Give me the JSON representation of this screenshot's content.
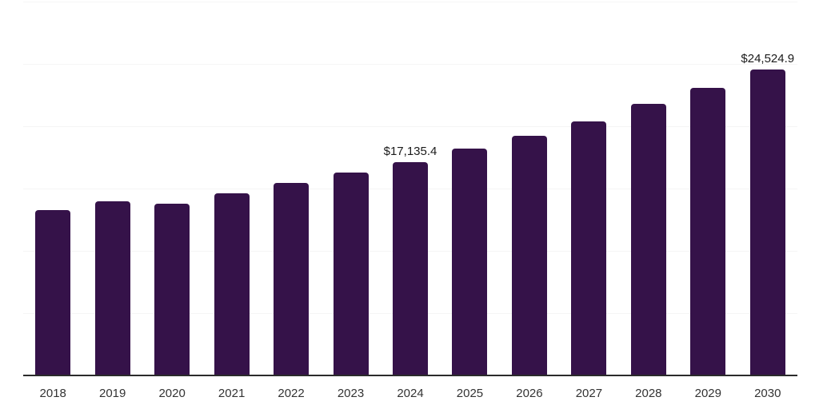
{
  "chart_data": {
    "type": "bar",
    "title": "",
    "xlabel": "",
    "ylabel": "",
    "categories": [
      "2018",
      "2019",
      "2020",
      "2021",
      "2022",
      "2023",
      "2024",
      "2025",
      "2026",
      "2027",
      "2028",
      "2029",
      "2030"
    ],
    "values": [
      13250,
      13960,
      13780,
      14610,
      15440,
      16280,
      17135.4,
      18200,
      19200,
      20390,
      21790,
      23080,
      24524.9
    ],
    "ylim": [
      0,
      30000
    ],
    "gridline_interval": 5000,
    "grid": "horizontal-only",
    "legend": "none",
    "annotations": [
      {
        "category": "2024",
        "label": "$17,135.4"
      },
      {
        "category": "2030",
        "label": "$24,524.9"
      }
    ]
  },
  "colors": {
    "bar": "#351249",
    "axis_line": "#2b2b2b",
    "gridline": "#f5f5f5",
    "tick_label": "#333333",
    "data_label": "#1a1a1a",
    "background": "#ffffff"
  }
}
